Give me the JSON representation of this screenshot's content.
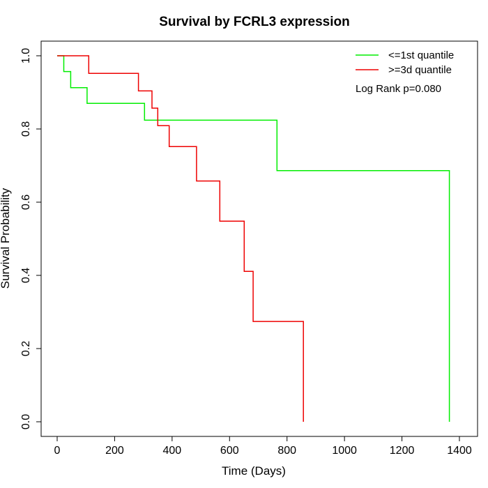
{
  "chart_data": {
    "type": "line",
    "title": "Survival by FCRL3 expression",
    "xlabel": "Time (Days)",
    "ylabel": "Survival Probability",
    "xlim": [
      0,
      1400
    ],
    "ylim": [
      0,
      1
    ],
    "xticks": [
      0,
      200,
      400,
      600,
      800,
      1000,
      1200,
      1400
    ],
    "yticks": [
      0.0,
      0.2,
      0.4,
      0.6,
      0.8,
      1.0
    ],
    "xtick_labels": [
      "0",
      "200",
      "400",
      "600",
      "800",
      "1000",
      "1200",
      "1400"
    ],
    "ytick_labels": [
      "0.0",
      "0.2",
      "0.4",
      "0.6",
      "0.8",
      "1.0"
    ],
    "grid": false,
    "legend_position": "top-right",
    "annotation": "Log Rank p=0.080",
    "series": [
      {
        "name": "<=1st quantile",
        "color": "#00ee00",
        "step": true,
        "x": [
          0,
          23,
          23,
          47,
          47,
          104,
          104,
          304,
          304,
          765,
          765,
          1365,
          1365
        ],
        "y": [
          1.0,
          1.0,
          0.957,
          0.957,
          0.913,
          0.913,
          0.87,
          0.87,
          0.824,
          0.824,
          0.686,
          0.686,
          0.0
        ]
      },
      {
        "name": ">=3d quantile",
        "color": "#ee0000",
        "step": true,
        "x": [
          0,
          110,
          110,
          283,
          283,
          330,
          330,
          350,
          350,
          390,
          390,
          485,
          485,
          566,
          566,
          651,
          651,
          682,
          682,
          857,
          857
        ],
        "y": [
          1.0,
          1.0,
          0.952,
          0.952,
          0.904,
          0.904,
          0.857,
          0.857,
          0.809,
          0.809,
          0.752,
          0.752,
          0.658,
          0.658,
          0.548,
          0.548,
          0.411,
          0.411,
          0.274,
          0.274,
          0.0
        ]
      }
    ]
  }
}
